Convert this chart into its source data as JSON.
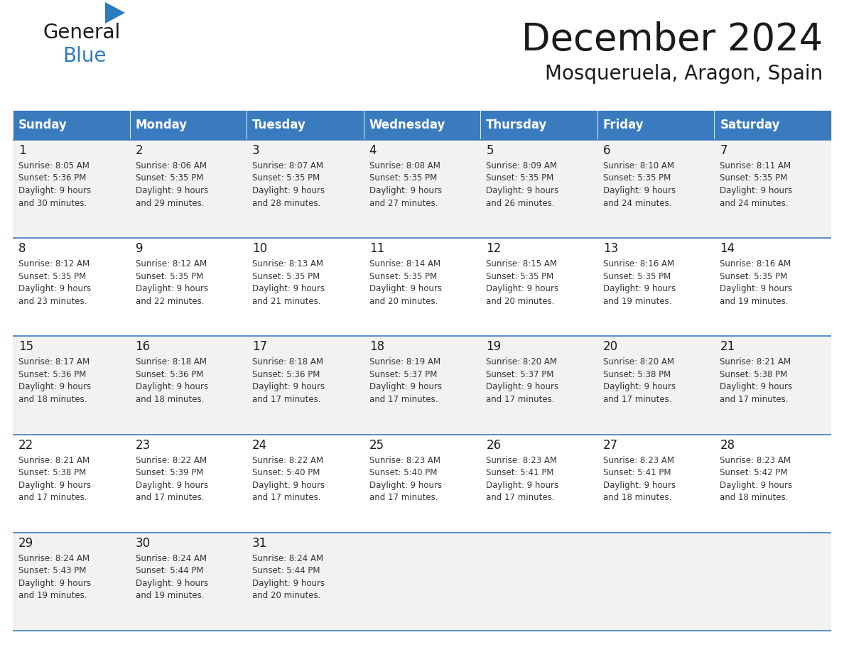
{
  "title": "December 2024",
  "subtitle": "Mosqueruela, Aragon, Spain",
  "header_bg_color": "#3a7abf",
  "header_text_color": "#ffffff",
  "header_days": [
    "Sunday",
    "Monday",
    "Tuesday",
    "Wednesday",
    "Thursday",
    "Friday",
    "Saturday"
  ],
  "row_bg_colors": [
    "#f2f2f2",
    "#ffffff",
    "#f2f2f2",
    "#ffffff",
    "#f2f2f2"
  ],
  "cell_border_color": "#3a7abf",
  "title_color": "#1a1a1a",
  "subtitle_color": "#1a1a1a",
  "day_number_color": "#1a1a1a",
  "cell_text_color": "#333333",
  "logo_general_color": "#1a1a1a",
  "logo_blue_color": "#2b7bbf",
  "logo_triangle_color": "#2b7bbf",
  "days": [
    {
      "day": 1,
      "col": 0,
      "row": 0,
      "sunrise": "8:05 AM",
      "sunset": "5:36 PM",
      "daylight_hours": 9,
      "daylight_minutes": 30
    },
    {
      "day": 2,
      "col": 1,
      "row": 0,
      "sunrise": "8:06 AM",
      "sunset": "5:35 PM",
      "daylight_hours": 9,
      "daylight_minutes": 29
    },
    {
      "day": 3,
      "col": 2,
      "row": 0,
      "sunrise": "8:07 AM",
      "sunset": "5:35 PM",
      "daylight_hours": 9,
      "daylight_minutes": 28
    },
    {
      "day": 4,
      "col": 3,
      "row": 0,
      "sunrise": "8:08 AM",
      "sunset": "5:35 PM",
      "daylight_hours": 9,
      "daylight_minutes": 27
    },
    {
      "day": 5,
      "col": 4,
      "row": 0,
      "sunrise": "8:09 AM",
      "sunset": "5:35 PM",
      "daylight_hours": 9,
      "daylight_minutes": 26
    },
    {
      "day": 6,
      "col": 5,
      "row": 0,
      "sunrise": "8:10 AM",
      "sunset": "5:35 PM",
      "daylight_hours": 9,
      "daylight_minutes": 24
    },
    {
      "day": 7,
      "col": 6,
      "row": 0,
      "sunrise": "8:11 AM",
      "sunset": "5:35 PM",
      "daylight_hours": 9,
      "daylight_minutes": 24
    },
    {
      "day": 8,
      "col": 0,
      "row": 1,
      "sunrise": "8:12 AM",
      "sunset": "5:35 PM",
      "daylight_hours": 9,
      "daylight_minutes": 23
    },
    {
      "day": 9,
      "col": 1,
      "row": 1,
      "sunrise": "8:12 AM",
      "sunset": "5:35 PM",
      "daylight_hours": 9,
      "daylight_minutes": 22
    },
    {
      "day": 10,
      "col": 2,
      "row": 1,
      "sunrise": "8:13 AM",
      "sunset": "5:35 PM",
      "daylight_hours": 9,
      "daylight_minutes": 21
    },
    {
      "day": 11,
      "col": 3,
      "row": 1,
      "sunrise": "8:14 AM",
      "sunset": "5:35 PM",
      "daylight_hours": 9,
      "daylight_minutes": 20
    },
    {
      "day": 12,
      "col": 4,
      "row": 1,
      "sunrise": "8:15 AM",
      "sunset": "5:35 PM",
      "daylight_hours": 9,
      "daylight_minutes": 20
    },
    {
      "day": 13,
      "col": 5,
      "row": 1,
      "sunrise": "8:16 AM",
      "sunset": "5:35 PM",
      "daylight_hours": 9,
      "daylight_minutes": 19
    },
    {
      "day": 14,
      "col": 6,
      "row": 1,
      "sunrise": "8:16 AM",
      "sunset": "5:35 PM",
      "daylight_hours": 9,
      "daylight_minutes": 19
    },
    {
      "day": 15,
      "col": 0,
      "row": 2,
      "sunrise": "8:17 AM",
      "sunset": "5:36 PM",
      "daylight_hours": 9,
      "daylight_minutes": 18
    },
    {
      "day": 16,
      "col": 1,
      "row": 2,
      "sunrise": "8:18 AM",
      "sunset": "5:36 PM",
      "daylight_hours": 9,
      "daylight_minutes": 18
    },
    {
      "day": 17,
      "col": 2,
      "row": 2,
      "sunrise": "8:18 AM",
      "sunset": "5:36 PM",
      "daylight_hours": 9,
      "daylight_minutes": 17
    },
    {
      "day": 18,
      "col": 3,
      "row": 2,
      "sunrise": "8:19 AM",
      "sunset": "5:37 PM",
      "daylight_hours": 9,
      "daylight_minutes": 17
    },
    {
      "day": 19,
      "col": 4,
      "row": 2,
      "sunrise": "8:20 AM",
      "sunset": "5:37 PM",
      "daylight_hours": 9,
      "daylight_minutes": 17
    },
    {
      "day": 20,
      "col": 5,
      "row": 2,
      "sunrise": "8:20 AM",
      "sunset": "5:38 PM",
      "daylight_hours": 9,
      "daylight_minutes": 17
    },
    {
      "day": 21,
      "col": 6,
      "row": 2,
      "sunrise": "8:21 AM",
      "sunset": "5:38 PM",
      "daylight_hours": 9,
      "daylight_minutes": 17
    },
    {
      "day": 22,
      "col": 0,
      "row": 3,
      "sunrise": "8:21 AM",
      "sunset": "5:38 PM",
      "daylight_hours": 9,
      "daylight_minutes": 17
    },
    {
      "day": 23,
      "col": 1,
      "row": 3,
      "sunrise": "8:22 AM",
      "sunset": "5:39 PM",
      "daylight_hours": 9,
      "daylight_minutes": 17
    },
    {
      "day": 24,
      "col": 2,
      "row": 3,
      "sunrise": "8:22 AM",
      "sunset": "5:40 PM",
      "daylight_hours": 9,
      "daylight_minutes": 17
    },
    {
      "day": 25,
      "col": 3,
      "row": 3,
      "sunrise": "8:23 AM",
      "sunset": "5:40 PM",
      "daylight_hours": 9,
      "daylight_minutes": 17
    },
    {
      "day": 26,
      "col": 4,
      "row": 3,
      "sunrise": "8:23 AM",
      "sunset": "5:41 PM",
      "daylight_hours": 9,
      "daylight_minutes": 17
    },
    {
      "day": 27,
      "col": 5,
      "row": 3,
      "sunrise": "8:23 AM",
      "sunset": "5:41 PM",
      "daylight_hours": 9,
      "daylight_minutes": 18
    },
    {
      "day": 28,
      "col": 6,
      "row": 3,
      "sunrise": "8:23 AM",
      "sunset": "5:42 PM",
      "daylight_hours": 9,
      "daylight_minutes": 18
    },
    {
      "day": 29,
      "col": 0,
      "row": 4,
      "sunrise": "8:24 AM",
      "sunset": "5:43 PM",
      "daylight_hours": 9,
      "daylight_minutes": 19
    },
    {
      "day": 30,
      "col": 1,
      "row": 4,
      "sunrise": "8:24 AM",
      "sunset": "5:44 PM",
      "daylight_hours": 9,
      "daylight_minutes": 19
    },
    {
      "day": 31,
      "col": 2,
      "row": 4,
      "sunrise": "8:24 AM",
      "sunset": "5:44 PM",
      "daylight_hours": 9,
      "daylight_minutes": 20
    }
  ]
}
